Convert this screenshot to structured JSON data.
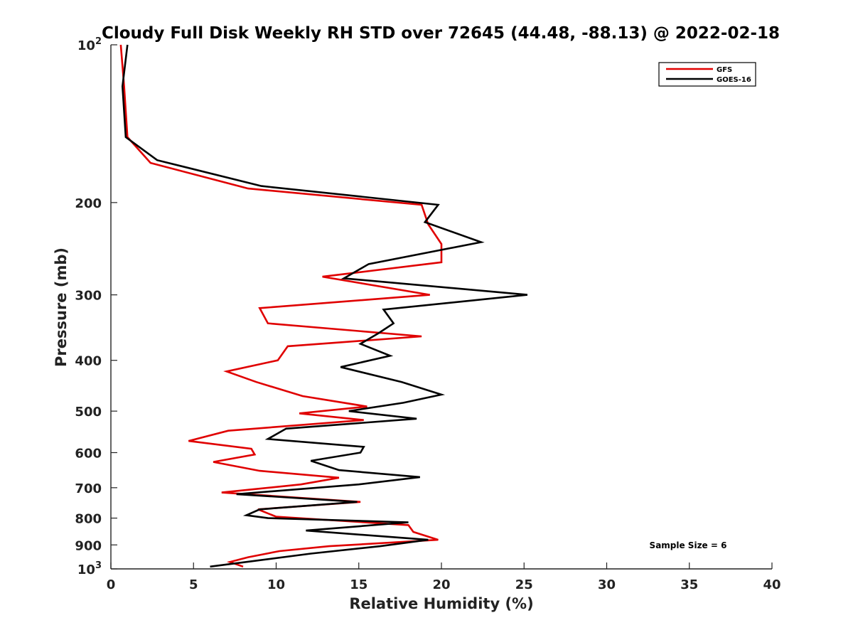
{
  "chart_data": {
    "type": "line",
    "title": "Cloudy Full Disk Weekly RH STD over 72645 (44.48, -88.13) @ 2022-02-18",
    "xlabel": "Relative Humidity (%)",
    "ylabel": "Pressure (mb)",
    "xlim": [
      0,
      40
    ],
    "ylim": [
      100,
      1000
    ],
    "y_scale": "log",
    "y_reversed": true,
    "x_ticks": [
      "0",
      "5",
      "10",
      "15",
      "20",
      "25",
      "30",
      "35",
      "40"
    ],
    "y_ticks": [
      {
        "value": 100,
        "base": "10",
        "exp": "2"
      },
      {
        "value": 200,
        "label": "200"
      },
      {
        "value": 300,
        "label": "300"
      },
      {
        "value": 400,
        "label": "400"
      },
      {
        "value": 500,
        "label": "500"
      },
      {
        "value": 600,
        "label": "600"
      },
      {
        "value": 700,
        "label": "700"
      },
      {
        "value": 800,
        "label": "800"
      },
      {
        "value": 900,
        "label": "900"
      },
      {
        "value": 1000,
        "base": "10",
        "exp": "3"
      }
    ],
    "grid": false,
    "legend_position": "top-right",
    "annotation": "Sample Size = 6",
    "series": [
      {
        "name": "GFS",
        "color": "#e00000",
        "x": [
          0.6,
          0.8,
          1.0,
          2.4,
          8.3,
          18.8,
          19.2,
          20.0,
          20.0,
          12.8,
          19.3,
          9.0,
          9.5,
          18.8,
          10.7,
          10.1,
          7.0,
          8.8,
          11.6,
          15.5,
          11.4,
          15.3,
          7.1,
          4.7,
          8.5,
          8.7,
          6.2,
          9.0,
          13.8,
          11.5,
          6.7,
          15.1,
          8.9,
          10.0,
          18.0,
          18.3,
          19.8,
          13.2,
          10.2,
          8.3,
          7.2,
          8.0
        ],
        "y": [
          100,
          120,
          150,
          168,
          188,
          202,
          220,
          240,
          260,
          277,
          300,
          318,
          340,
          360,
          376,
          400,
          420,
          440,
          468,
          490,
          505,
          520,
          545,
          570,
          590,
          605,
          625,
          650,
          670,
          690,
          715,
          745,
          770,
          795,
          825,
          850,
          880,
          905,
          925,
          950,
          970,
          990
        ]
      },
      {
        "name": "GOES-16",
        "color": "#000000",
        "x": [
          1.0,
          0.7,
          0.9,
          2.8,
          9.1,
          19.8,
          19.0,
          22.4,
          15.6,
          14.1,
          25.2,
          16.5,
          17.1,
          16.2,
          15.1,
          16.9,
          13.9,
          17.6,
          20.0,
          17.7,
          14.4,
          18.5,
          10.6,
          9.5,
          15.3,
          15.1,
          12.1,
          13.8,
          18.7,
          15.0,
          7.6,
          14.9,
          9.0,
          8.2,
          9.5,
          18.0,
          11.8,
          19.2,
          16.3,
          12.1,
          6.0
        ],
        "y": [
          100,
          120,
          150,
          166,
          186,
          202,
          218,
          238,
          262,
          279,
          300,
          320,
          340,
          355,
          372,
          392,
          412,
          440,
          465,
          482,
          500,
          517,
          540,
          565,
          585,
          600,
          622,
          648,
          668,
          690,
          720,
          745,
          770,
          790,
          800,
          815,
          845,
          880,
          905,
          935,
          990
        ]
      }
    ]
  }
}
